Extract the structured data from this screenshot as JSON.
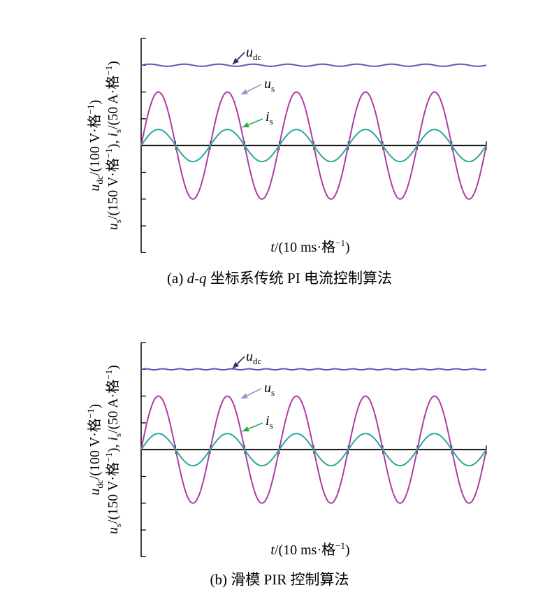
{
  "colors": {
    "udc": "#5b58b8",
    "us": "#b03aa7",
    "is": "#2aa898",
    "axis": "#000000",
    "arrow_udc": "#2b2a6e",
    "arrow_us": "#9b8fcf",
    "arrow_is": "#2fa84a"
  },
  "chart_data": [
    {
      "type": "line",
      "caption": {
        "label": "(a)",
        "italic": "d-q",
        "text": "坐标系传统 PI 电流控制算法"
      },
      "xlabel": {
        "var": "t",
        "unit": "/(10 ms·格",
        "exp": "−1",
        "close": ")"
      },
      "ylabel": {
        "line1": {
          "var": "u",
          "sub": "dc",
          "unit": "/(100 V·格",
          "exp": "−1",
          "close": ")"
        },
        "line2": {
          "var1": "u",
          "sub1": "s",
          "unit1": "/(150 V·格",
          "exp1": "−1",
          "mid": "), ",
          "var2": "i",
          "sub2": "s",
          "unit2": "/(50 A·格",
          "exp2": "−1",
          "close": ")"
        }
      },
      "x_divisions": 5,
      "y_divisions": 8,
      "grid": false,
      "series": [
        {
          "name": "udc",
          "label_var": "u",
          "label_sub": "dc",
          "offset_div": 3,
          "ripple_div": 0.04,
          "ripple_cycles": 10,
          "color": "udc"
        },
        {
          "name": "us",
          "label_var": "u",
          "label_sub": "s",
          "amplitude_div": 2,
          "cycles": 5,
          "start_phase_deg": 0,
          "color": "us"
        },
        {
          "name": "is",
          "label_var": "i",
          "label_sub": "s",
          "amplitude_div": 0.6,
          "cycles": 5,
          "start_phase_deg": 0,
          "color": "is"
        }
      ]
    },
    {
      "type": "line",
      "caption": {
        "label": "(b)",
        "italic": "",
        "text": "滑模 PIR 控制算法"
      },
      "xlabel": {
        "var": "t",
        "unit": "/(10 ms·格",
        "exp": "−1",
        "close": ")"
      },
      "ylabel": {
        "line1": {
          "var": "u",
          "sub": "dc",
          "unit": "/(100 V·格",
          "exp": "−1",
          "close": ")"
        },
        "line2": {
          "var1": "u",
          "sub1": "s",
          "unit1": "/(150 V·格",
          "exp1": "−1",
          "mid": "), ",
          "var2": "i",
          "sub2": "s",
          "unit2": "/(50 A·格",
          "exp2": "−1",
          "close": ")"
        }
      },
      "x_divisions": 5,
      "y_divisions": 8,
      "grid": false,
      "series": [
        {
          "name": "udc",
          "label_var": "u",
          "label_sub": "dc",
          "offset_div": 3,
          "ripple_div": 0.02,
          "ripple_cycles": 20,
          "color": "udc"
        },
        {
          "name": "us",
          "label_var": "u",
          "label_sub": "s",
          "amplitude_div": 2,
          "cycles": 5,
          "start_phase_deg": 0,
          "color": "us"
        },
        {
          "name": "is",
          "label_var": "i",
          "label_sub": "s",
          "amplitude_div": 0.6,
          "cycles": 5,
          "start_phase_deg": 0,
          "color": "is"
        }
      ]
    }
  ]
}
